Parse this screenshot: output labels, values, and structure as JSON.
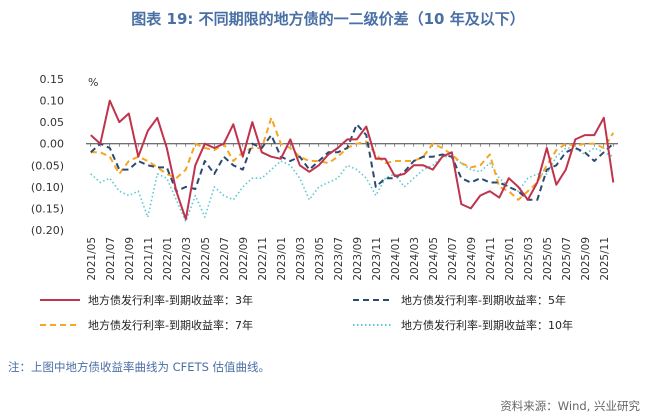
{
  "header": {
    "title": "图表 19: 不同期限的地方债的一二级价差（10 年及以下）"
  },
  "footer": {
    "note": "注：上图中地方债收益率曲线为 CFETS 估值曲线。",
    "source": "资料来源：Wind, 兴业研究"
  },
  "chart_data": {
    "type": "line",
    "title": "",
    "xlabel": "",
    "ylabel": "%",
    "ylim": [
      -0.2,
      0.15
    ],
    "yticks": [
      0.15,
      0.1,
      0.05,
      0.0,
      -0.05,
      -0.1,
      -0.15,
      -0.2
    ],
    "ytick_labels": [
      "0.15",
      "0.10",
      "0.05",
      "0.00",
      "(0.05)",
      "(0.10)",
      "(0.15)",
      "(0.20)"
    ],
    "x": [
      "2021/05",
      "2021/06",
      "2021/07",
      "2021/08",
      "2021/09",
      "2021/10",
      "2021/11",
      "2021/12",
      "2022/01",
      "2022/02",
      "2022/03",
      "2022/04",
      "2022/05",
      "2022/06",
      "2022/07",
      "2022/08",
      "2022/09",
      "2022/10",
      "2022/11",
      "2022/12",
      "2023/01",
      "2023/02",
      "2023/03",
      "2023/04",
      "2023/05",
      "2023/06",
      "2023/07",
      "2023/08",
      "2023/09",
      "2023/10",
      "2023/11",
      "2023/12",
      "2024/01",
      "2024/02",
      "2024/03",
      "2024/04",
      "2024/05",
      "2024/06",
      "2024/07",
      "2024/08",
      "2024/09",
      "2024/10",
      "2024/11",
      "2024/12",
      "2025/01",
      "2025/02",
      "2025/03",
      "2025/04",
      "2025/05",
      "2025/06",
      "2025/07",
      "2025/08",
      "2025/09",
      "2025/10",
      "2025/11",
      "2025/12"
    ],
    "xtick_labels": [
      "2021/05",
      "2021/07",
      "2021/09",
      "2021/11",
      "2022/01",
      "2022/03",
      "2022/05",
      "2022/07",
      "2022/09",
      "2022/11",
      "2023/01",
      "2023/03",
      "2023/05",
      "2023/07",
      "2023/09",
      "2023/11",
      "2024/01",
      "2024/03",
      "2024/05",
      "2024/07",
      "2024/09",
      "2024/11",
      "2025/01",
      "2025/03",
      "2025/05",
      "2025/07",
      "2025/09",
      "2025/11"
    ],
    "legend": {
      "placement": "bottom",
      "columns": 2
    },
    "series": [
      {
        "name": "地方债发行利率-到期收益率：3年",
        "color": "#c0334d",
        "dash": "solid",
        "values": [
          0.02,
          0.0,
          0.1,
          0.05,
          0.07,
          -0.03,
          0.03,
          0.06,
          -0.01,
          -0.11,
          -0.175,
          -0.05,
          0.0,
          -0.01,
          0.0,
          0.045,
          -0.03,
          0.05,
          -0.02,
          -0.03,
          -0.035,
          0.01,
          -0.05,
          -0.065,
          -0.05,
          -0.025,
          -0.01,
          0.01,
          0.01,
          0.04,
          -0.035,
          -0.035,
          -0.075,
          -0.07,
          -0.05,
          -0.05,
          -0.06,
          -0.03,
          -0.02,
          -0.14,
          -0.15,
          -0.12,
          -0.11,
          -0.125,
          -0.08,
          -0.1,
          -0.13,
          -0.09,
          -0.01,
          -0.095,
          -0.06,
          0.01,
          0.02,
          0.02,
          0.06,
          -0.09
        ]
      },
      {
        "name": "地方债发行利率-到期收益率：5年",
        "color": "#2c4a70",
        "dash": "dash",
        "values": [
          -0.02,
          0.0,
          -0.01,
          -0.06,
          -0.06,
          -0.04,
          -0.05,
          -0.055,
          -0.055,
          -0.11,
          -0.1,
          -0.105,
          -0.04,
          -0.07,
          -0.03,
          -0.05,
          -0.06,
          0.0,
          -0.01,
          0.02,
          -0.03,
          -0.04,
          -0.03,
          -0.06,
          -0.04,
          -0.02,
          -0.02,
          -0.01,
          0.045,
          0.02,
          -0.1,
          -0.08,
          -0.08,
          -0.065,
          -0.04,
          -0.03,
          -0.03,
          -0.025,
          -0.03,
          -0.08,
          -0.09,
          -0.08,
          -0.09,
          -0.09,
          -0.1,
          -0.11,
          -0.13,
          -0.13,
          -0.06,
          -0.05,
          -0.02,
          -0.01,
          -0.02,
          -0.04,
          -0.02,
          0.0
        ]
      },
      {
        "name": "地方债发行利率-到期收益率：7年",
        "color": "#f5a623",
        "dash": "dash",
        "values": [
          -0.02,
          -0.02,
          -0.03,
          -0.07,
          -0.04,
          -0.03,
          -0.04,
          -0.055,
          -0.07,
          -0.08,
          -0.06,
          0.0,
          -0.01,
          -0.015,
          0.0,
          -0.04,
          -0.02,
          -0.01,
          -0.01,
          0.06,
          0.0,
          -0.01,
          -0.03,
          -0.04,
          -0.04,
          -0.045,
          -0.03,
          -0.01,
          0.0,
          0.005,
          -0.025,
          -0.045,
          -0.04,
          -0.04,
          -0.04,
          -0.03,
          0.0,
          -0.01,
          -0.025,
          -0.045,
          -0.055,
          -0.05,
          -0.025,
          -0.1,
          -0.11,
          -0.13,
          -0.11,
          -0.09,
          -0.05,
          -0.015,
          0.0,
          -0.005,
          0.0,
          0.0,
          -0.01,
          0.025
        ]
      },
      {
        "name": "地方债发行利率-到期收益率：10年",
        "color": "#5bc8d3",
        "dash": "dot",
        "values": [
          -0.07,
          -0.09,
          -0.08,
          -0.11,
          -0.12,
          -0.11,
          -0.17,
          -0.07,
          -0.08,
          -0.13,
          -0.18,
          -0.12,
          -0.17,
          -0.1,
          -0.12,
          -0.13,
          -0.1,
          -0.08,
          -0.08,
          -0.06,
          -0.04,
          -0.05,
          -0.08,
          -0.13,
          -0.1,
          -0.09,
          -0.08,
          -0.05,
          -0.06,
          -0.08,
          -0.12,
          -0.08,
          -0.07,
          -0.1,
          -0.08,
          -0.06,
          -0.05,
          -0.03,
          -0.03,
          -0.045,
          -0.06,
          -0.065,
          -0.045,
          -0.08,
          -0.1,
          -0.11,
          -0.08,
          -0.07,
          -0.07,
          -0.03,
          -0.01,
          -0.01,
          -0.025,
          -0.01,
          -0.02,
          -0.03
        ]
      }
    ]
  }
}
